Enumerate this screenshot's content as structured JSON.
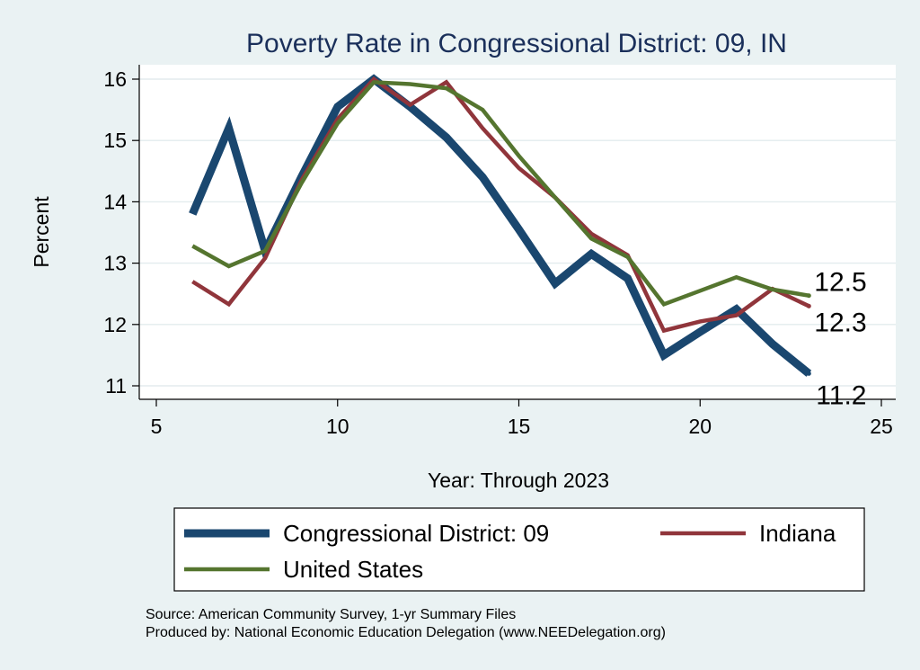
{
  "chart_data": {
    "type": "line",
    "title": "Poverty Rate in Congressional District:  09, IN",
    "xlabel": "Year: Through 2023",
    "ylabel": "Percent",
    "xlim": [
      5,
      25
    ],
    "ylim": [
      11,
      16
    ],
    "xticks": [
      5,
      10,
      15,
      20,
      25
    ],
    "yticks": [
      11,
      12,
      13,
      14,
      15,
      16
    ],
    "grid": true,
    "x": [
      6,
      7,
      8,
      9,
      10,
      11,
      12,
      13,
      14,
      15,
      16,
      17,
      18,
      19,
      20,
      21,
      22,
      23
    ],
    "series": [
      {
        "name": "Congressional District:  09",
        "color": "#1a476f",
        "values": [
          13.8,
          15.2,
          13.2,
          14.4,
          15.55,
          16.0,
          15.55,
          15.05,
          14.4,
          13.55,
          12.67,
          13.15,
          12.75,
          11.5,
          11.88,
          12.25,
          11.68,
          11.2
        ],
        "end_label": "11.2"
      },
      {
        "name": "Indiana",
        "color": "#90353b",
        "values": [
          12.7,
          12.33,
          13.08,
          14.35,
          15.35,
          16.0,
          15.58,
          15.95,
          15.2,
          14.55,
          14.07,
          13.48,
          13.13,
          11.9,
          12.05,
          12.15,
          12.58,
          12.3
        ],
        "end_label": "12.3"
      },
      {
        "name": "United States",
        "color": "#55752f",
        "values": [
          13.28,
          12.95,
          13.2,
          14.3,
          15.28,
          15.95,
          15.92,
          15.85,
          15.5,
          14.75,
          14.07,
          13.4,
          13.1,
          12.33,
          12.55,
          12.77,
          12.57,
          12.47
        ],
        "end_label": "12.5"
      }
    ],
    "legend_position": "bottom",
    "source": "Source: American Community Survey, 1-yr Summary Files",
    "producer": "Produced by: National Economic Education Delegation (www.NEEDelegation.org)"
  }
}
